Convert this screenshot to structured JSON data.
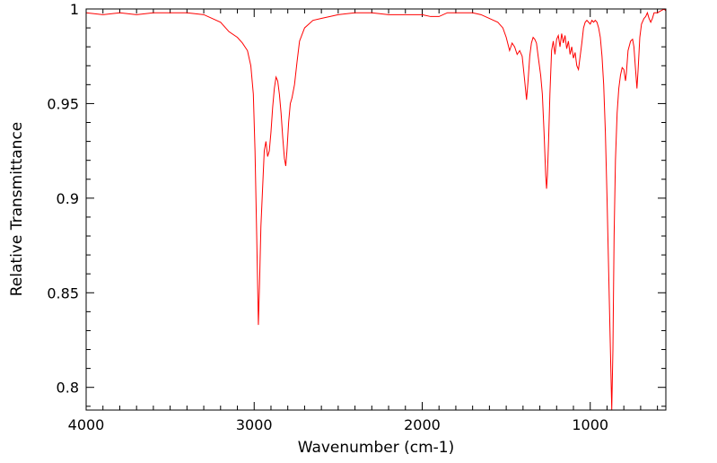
{
  "chart_data": {
    "type": "line",
    "title": "",
    "xlabel": "Wavenumber (cm-1)",
    "ylabel": "Relative Transmittance",
    "xlim": [
      4000,
      550
    ],
    "ylim": [
      0.788,
      1.0
    ],
    "x_reversed": true,
    "grid": false,
    "legend": "none",
    "x_ticks": [
      {
        "value": 4000,
        "label": "4000"
      },
      {
        "value": 3000,
        "label": "3000"
      },
      {
        "value": 2000,
        "label": "2000"
      },
      {
        "value": 1000,
        "label": "1000"
      }
    ],
    "y_ticks": [
      {
        "value": 1.0,
        "label": "1"
      },
      {
        "value": 0.95,
        "label": "0.95"
      },
      {
        "value": 0.9,
        "label": "0.9"
      },
      {
        "value": 0.85,
        "label": "0.85"
      },
      {
        "value": 0.8,
        "label": "0.8"
      }
    ],
    "line_color": "#ff0000",
    "series": [
      {
        "values": [
          [
            4000,
            0.998
          ],
          [
            3900,
            0.997
          ],
          [
            3800,
            0.998
          ],
          [
            3700,
            0.997
          ],
          [
            3600,
            0.998
          ],
          [
            3500,
            0.998
          ],
          [
            3400,
            0.998
          ],
          [
            3300,
            0.997
          ],
          [
            3250,
            0.995
          ],
          [
            3200,
            0.993
          ],
          [
            3150,
            0.988
          ],
          [
            3100,
            0.985
          ],
          [
            3070,
            0.982
          ],
          [
            3040,
            0.978
          ],
          [
            3020,
            0.97
          ],
          [
            3005,
            0.955
          ],
          [
            2995,
            0.925
          ],
          [
            2985,
            0.88
          ],
          [
            2975,
            0.833
          ],
          [
            2968,
            0.855
          ],
          [
            2960,
            0.885
          ],
          [
            2950,
            0.905
          ],
          [
            2940,
            0.925
          ],
          [
            2930,
            0.93
          ],
          [
            2920,
            0.922
          ],
          [
            2910,
            0.925
          ],
          [
            2900,
            0.935
          ],
          [
            2890,
            0.948
          ],
          [
            2880,
            0.958
          ],
          [
            2870,
            0.964
          ],
          [
            2860,
            0.962
          ],
          [
            2850,
            0.955
          ],
          [
            2840,
            0.945
          ],
          [
            2830,
            0.932
          ],
          [
            2820,
            0.921
          ],
          [
            2812,
            0.917
          ],
          [
            2805,
            0.925
          ],
          [
            2795,
            0.94
          ],
          [
            2785,
            0.95
          ],
          [
            2775,
            0.953
          ],
          [
            2760,
            0.96
          ],
          [
            2745,
            0.972
          ],
          [
            2730,
            0.983
          ],
          [
            2700,
            0.99
          ],
          [
            2650,
            0.994
          ],
          [
            2600,
            0.995
          ],
          [
            2500,
            0.997
          ],
          [
            2400,
            0.998
          ],
          [
            2300,
            0.998
          ],
          [
            2200,
            0.997
          ],
          [
            2100,
            0.997
          ],
          [
            2000,
            0.997
          ],
          [
            1950,
            0.996
          ],
          [
            1900,
            0.996
          ],
          [
            1850,
            0.998
          ],
          [
            1800,
            0.998
          ],
          [
            1750,
            0.998
          ],
          [
            1700,
            0.998
          ],
          [
            1650,
            0.997
          ],
          [
            1600,
            0.995
          ],
          [
            1550,
            0.993
          ],
          [
            1520,
            0.99
          ],
          [
            1500,
            0.985
          ],
          [
            1480,
            0.978
          ],
          [
            1465,
            0.982
          ],
          [
            1450,
            0.98
          ],
          [
            1435,
            0.976
          ],
          [
            1420,
            0.978
          ],
          [
            1405,
            0.975
          ],
          [
            1390,
            0.962
          ],
          [
            1379,
            0.952
          ],
          [
            1370,
            0.962
          ],
          [
            1360,
            0.975
          ],
          [
            1350,
            0.982
          ],
          [
            1340,
            0.985
          ],
          [
            1330,
            0.984
          ],
          [
            1320,
            0.982
          ],
          [
            1310,
            0.975
          ],
          [
            1295,
            0.965
          ],
          [
            1285,
            0.955
          ],
          [
            1275,
            0.935
          ],
          [
            1265,
            0.912
          ],
          [
            1260,
            0.905
          ],
          [
            1255,
            0.912
          ],
          [
            1248,
            0.93
          ],
          [
            1240,
            0.955
          ],
          [
            1230,
            0.978
          ],
          [
            1220,
            0.983
          ],
          [
            1210,
            0.976
          ],
          [
            1200,
            0.984
          ],
          [
            1190,
            0.986
          ],
          [
            1180,
            0.98
          ],
          [
            1170,
            0.987
          ],
          [
            1160,
            0.982
          ],
          [
            1150,
            0.986
          ],
          [
            1140,
            0.979
          ],
          [
            1130,
            0.983
          ],
          [
            1120,
            0.976
          ],
          [
            1110,
            0.98
          ],
          [
            1100,
            0.974
          ],
          [
            1090,
            0.977
          ],
          [
            1080,
            0.97
          ],
          [
            1070,
            0.968
          ],
          [
            1060,
            0.975
          ],
          [
            1050,
            0.982
          ],
          [
            1040,
            0.99
          ],
          [
            1030,
            0.993
          ],
          [
            1020,
            0.994
          ],
          [
            1010,
            0.993
          ],
          [
            1000,
            0.992
          ],
          [
            990,
            0.994
          ],
          [
            980,
            0.993
          ],
          [
            970,
            0.994
          ],
          [
            960,
            0.993
          ],
          [
            950,
            0.99
          ],
          [
            940,
            0.985
          ],
          [
            930,
            0.975
          ],
          [
            920,
            0.96
          ],
          [
            910,
            0.935
          ],
          [
            900,
            0.9
          ],
          [
            890,
            0.86
          ],
          [
            880,
            0.82
          ],
          [
            872,
            0.788
          ],
          [
            865,
            0.82
          ],
          [
            858,
            0.88
          ],
          [
            850,
            0.92
          ],
          [
            840,
            0.945
          ],
          [
            830,
            0.958
          ],
          [
            820,
            0.965
          ],
          [
            810,
            0.969
          ],
          [
            800,
            0.968
          ],
          [
            795,
            0.965
          ],
          [
            790,
            0.962
          ],
          [
            785,
            0.966
          ],
          [
            775,
            0.978
          ],
          [
            760,
            0.983
          ],
          [
            748,
            0.984
          ],
          [
            740,
            0.98
          ],
          [
            732,
            0.97
          ],
          [
            722,
            0.958
          ],
          [
            715,
            0.968
          ],
          [
            705,
            0.985
          ],
          [
            695,
            0.992
          ],
          [
            680,
            0.995
          ],
          [
            670,
            0.996
          ],
          [
            660,
            0.998
          ],
          [
            650,
            0.995
          ],
          [
            640,
            0.993
          ],
          [
            630,
            0.995
          ],
          [
            620,
            0.998
          ],
          [
            600,
            0.998
          ],
          [
            580,
            0.999
          ],
          [
            560,
            1.0
          ],
          [
            550,
            0.999
          ]
        ]
      }
    ]
  }
}
